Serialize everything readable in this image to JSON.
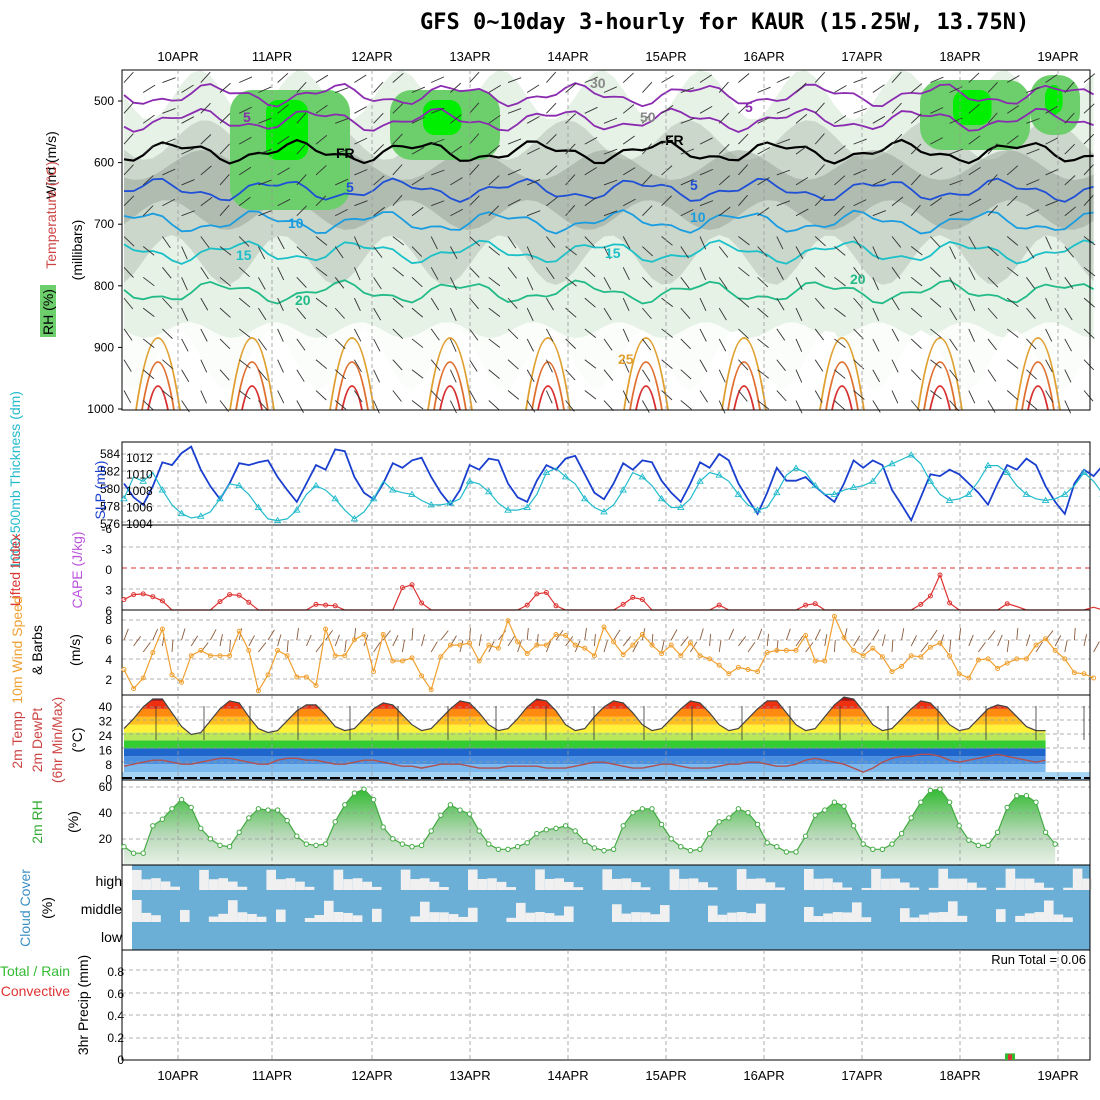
{
  "title": "GFS 0~10day 3-hourly for KAUR (15.25W, 13.75N)",
  "dates": [
    "10APR",
    "11APR",
    "12APR",
    "13APR",
    "14APR",
    "15APR",
    "16APR",
    "17APR",
    "18APR",
    "19APR"
  ],
  "colors": {
    "grid": "#999999",
    "rh_light": "#e6f2e6",
    "rh_mid": "#c8d4c8",
    "rh_dark": "#9aa59a",
    "rh_high": "#6ccf6c",
    "rh_max": "#00ee00",
    "slp": "#1a3fcf",
    "thickness": "#22bbcc",
    "lifted_index": "#dd3333",
    "wind_speed": "#f0a030",
    "barb": "#333333",
    "temp_line": "#444444",
    "dewpoint": "#b05050",
    "rh2m": "#44aa44",
    "cloud_bg": "#6baed6",
    "cloud_fill": "#f0f0f0"
  },
  "panels": {
    "upper": {
      "ylabel": "(millibars)",
      "side_labels": [
        "Wind (m/s)",
        "Temperature (°C)",
        "RH (%)"
      ],
      "yticks": [
        "500",
        "600",
        "700",
        "800",
        "900",
        "1000"
      ],
      "contour_labels": [
        "5",
        "5",
        "FR",
        "FR",
        "5",
        "5",
        "10",
        "10",
        "15",
        "15",
        "20",
        "20",
        "25",
        "30",
        "50"
      ]
    },
    "slp": {
      "side_labels": [
        "1000-500mb Thickness (dm)",
        "SLP (mb)"
      ],
      "left_ticks": [
        "584",
        "582",
        "580",
        "578",
        "576"
      ],
      "right_ticks": [
        "1012",
        "1010",
        "1008",
        "1006",
        "1004"
      ]
    },
    "li": {
      "side_labels": [
        "Lifted Index",
        "CAPE (J/kg)"
      ],
      "yticks": [
        "-6",
        "-3",
        "0",
        "3",
        "6"
      ]
    },
    "wind": {
      "side_labels": [
        "10m Wind Speed",
        "& Barbs"
      ],
      "unit": "(m/s)",
      "yticks": [
        "8",
        "6",
        "4",
        "2"
      ]
    },
    "temp": {
      "side_labels": [
        "2m Temp",
        "2m DewPt",
        "(6hr Min/Max)"
      ],
      "unit": "(°C)",
      "yticks": [
        "40",
        "32",
        "24",
        "16",
        "8",
        "0"
      ]
    },
    "rh": {
      "side_labels": [
        "2m RH"
      ],
      "unit": "(%)",
      "yticks": [
        "60",
        "40",
        "20"
      ]
    },
    "cloud": {
      "side_labels": [
        "Cloud Cover"
      ],
      "unit": "(%)",
      "levels": [
        "high",
        "middle",
        "low"
      ]
    },
    "precip": {
      "side_labels": [
        "Total / Rain",
        "Convective"
      ],
      "ylabel": "3hr Precip (mm)",
      "yticks": [
        "0.8",
        "0.6",
        "0.4",
        "0.2",
        "0"
      ],
      "run_total": "Run Total = 0.06"
    }
  },
  "chart_data": [
    {
      "type": "line",
      "name": "slp",
      "ylabel": "SLP (mb)",
      "ylim": [
        1004,
        1013
      ],
      "values": [
        1008.5,
        1007,
        1006.2,
        1008.2,
        1010.8,
        1010.5,
        1011.8,
        1012.5,
        1010,
        1008.2,
        1006.8,
        1008.5,
        1010.7,
        1010.5,
        1010.8,
        1011,
        1009.2,
        1007.8,
        1006.5,
        1008.5,
        1010.5,
        1010,
        1012.2,
        1012,
        1009.2,
        1007.5,
        1006.8,
        1008.5,
        1010.7,
        1010.2,
        1011,
        1011.3,
        1009.2,
        1007.5,
        1006.2,
        1007.8,
        1010.5,
        1010,
        1011.2,
        1011,
        1008.5,
        1007,
        1006.5,
        1008.8,
        1010.5,
        1010,
        1011.2,
        1011.5,
        1009.5,
        1007.5,
        1006.8,
        1008.5,
        1010.7,
        1010,
        1011,
        1010.8,
        1008.8,
        1007.5,
        1006.5,
        1008.5,
        1010.8,
        1010.2,
        1011.7,
        1011,
        1008.5,
        1006.8,
        1005.2,
        1007.5,
        1010.2,
        1008.8,
        1008.8,
        1009.2,
        1008.2,
        1007.3,
        1006.5,
        1008.5,
        1011,
        1010.2,
        1011,
        1010.5,
        1007.8,
        1006.2,
        1004.5,
        1007,
        1009.5,
        1009.3,
        1010,
        1009.5,
        1008.5,
        1007.5,
        1006.2,
        1008.5,
        1010.5,
        1010,
        1011.2,
        1010.5,
        1008.2,
        1006.5,
        1005.2,
        1008.5,
        1010,
        1009.3,
        1010.5,
        1009.2,
        1009.8
      ]
    },
    {
      "type": "line",
      "name": "thickness",
      "ylabel": "1000-500mb Thickness (dm)",
      "ylim": [
        575.5,
        585
      ],
      "values": [
        578.5,
        581,
        580.5,
        581.5,
        579.5,
        577.8,
        576.8,
        576.3,
        576.5,
        577,
        578.5,
        580.2,
        580,
        579,
        577.5,
        576.2,
        576,
        576.2,
        577.2,
        579,
        580,
        579.5,
        578.5,
        577.2,
        576.2,
        577,
        578.5,
        580.5,
        579.5,
        579.2,
        579,
        578.3,
        577.8,
        577.8,
        578,
        578.5,
        580.5,
        580.2,
        579.3,
        578,
        577.2,
        577.2,
        577.5,
        579,
        581.5,
        582,
        581,
        580.2,
        578.5,
        577.5,
        577,
        577.8,
        579.5,
        581.5,
        581,
        580,
        578.5,
        577.5,
        577.5,
        578.5,
        580.5,
        581.5,
        581.2,
        580.5,
        579,
        577.8,
        577.2,
        577.5,
        579.2,
        581.2,
        582,
        581.5,
        580,
        579,
        579,
        579.5,
        579.8,
        580,
        580.5,
        582,
        582.5,
        583,
        583.5,
        582.5,
        580.5,
        579,
        578.3,
        578.5,
        579,
        580.5,
        582.3,
        582.3,
        581.5,
        580,
        579,
        578.5,
        578.3,
        578.5,
        579,
        580,
        581.5,
        580.5,
        579
      ]
    },
    {
      "type": "line",
      "name": "lifted_index",
      "ylabel": "Lifted Index",
      "ylim": [
        6,
        -6
      ],
      "values": [
        4.5,
        3.8,
        3.7,
        4.1,
        4.7,
        6,
        6,
        6,
        6,
        6,
        4.8,
        3.8,
        3.9,
        4.9,
        6,
        6,
        6,
        6,
        6,
        6,
        5.2,
        5.3,
        5.4,
        6,
        6,
        6,
        6,
        6,
        6,
        2.8,
        2.4,
        5,
        6,
        6,
        6,
        6,
        6,
        6,
        6,
        6,
        6,
        6,
        5.3,
        3.7,
        3.5,
        5.4,
        6,
        6,
        6,
        6,
        6,
        6,
        5.2,
        4.2,
        4.5,
        6,
        6,
        6,
        6,
        6,
        6,
        6,
        5.3,
        6,
        6,
        6,
        6,
        6,
        6,
        6,
        6,
        5.3,
        5.1,
        6,
        6,
        6,
        6,
        6,
        6,
        6,
        6,
        6,
        6,
        5.2,
        4,
        1,
        5,
        6,
        6,
        6,
        6,
        6,
        5.1,
        5.5,
        6,
        6,
        6,
        6,
        6,
        6,
        6,
        5.6,
        6
      ]
    },
    {
      "type": "line",
      "name": "wind_speed_10m",
      "ylabel": "10m Wind Speed (m/s)",
      "ylim": [
        0.8,
        8.8
      ],
      "values": [
        3.2,
        1.4,
        2.4,
        4.8,
        7,
        2.7,
        2,
        4.5,
        5,
        4.5,
        4.5,
        4.5,
        6.8,
        5,
        1.2,
        2.7,
        5,
        4.5,
        2.5,
        2.5,
        1.7,
        7,
        4.5,
        4.5,
        6,
        6.5,
        3,
        6.5,
        4,
        4,
        4.3,
        2.6,
        1.3,
        4.4,
        5.5,
        5.5,
        5.7,
        4,
        5.5,
        5.2,
        7.8,
        5.8,
        4.7,
        5.5,
        5.5,
        6.5,
        6.4,
        5.5,
        5.2,
        4.5,
        7.2,
        5.8,
        4.6,
        5.5,
        6.5,
        5.5,
        4.7,
        5.5,
        4.5,
        5.7,
        4.5,
        4.2,
        3.6,
        2.8,
        3.4,
        3.2,
        3,
        4.8,
        5,
        5,
        5,
        6.4,
        4,
        4,
        8.2,
        6.2,
        5,
        4.5,
        5.2,
        4.4,
        3,
        3.5,
        4.5,
        4.4,
        5.3,
        5.7,
        4.5,
        2.8,
        2.4,
        4.1,
        4.2,
        3.3,
        3.8,
        4.2,
        4.2,
        5.5,
        6.1,
        5,
        4.2,
        2.9,
        2.8,
        2.4
      ]
    },
    {
      "type": "area",
      "name": "temp_2m",
      "ylabel": "2m Temp (°C)",
      "ylim": [
        0,
        43
      ],
      "values": [
        26,
        31,
        37,
        41,
        41,
        34,
        27,
        23,
        24,
        30,
        36,
        40,
        39,
        32,
        26,
        24,
        25,
        30,
        35,
        38,
        38,
        33,
        27,
        25,
        26,
        31,
        36,
        39,
        38,
        33,
        28,
        25,
        26,
        31,
        36,
        40,
        39,
        34,
        28,
        25,
        26,
        31,
        37,
        41,
        40,
        35,
        28,
        25,
        26,
        32,
        37,
        40,
        39,
        34,
        28,
        25,
        26,
        31,
        36,
        40,
        39,
        34,
        28,
        25,
        26,
        31,
        36,
        40,
        40,
        34,
        28,
        25,
        26,
        32,
        38,
        42,
        41,
        35,
        28,
        25,
        26,
        31,
        36,
        40,
        39,
        34,
        28,
        25,
        26,
        31,
        36,
        38,
        37,
        32,
        27,
        25,
        25
      ]
    },
    {
      "type": "line",
      "name": "dewpoint_2m",
      "ylabel": "2m DewPt (°C)",
      "ylim": [
        0,
        43
      ],
      "values": [
        7,
        8,
        9,
        10,
        10,
        9,
        8,
        8,
        9,
        10,
        11,
        11,
        10,
        9,
        8,
        8,
        10,
        11,
        11,
        10,
        10,
        9,
        8,
        8,
        9,
        10,
        10,
        9,
        8,
        7,
        7,
        6,
        7,
        8,
        8,
        8,
        7,
        6,
        6,
        6,
        7,
        7,
        7,
        7,
        6,
        6,
        6,
        7,
        8,
        9,
        9,
        8,
        7,
        6,
        6,
        7,
        8,
        8,
        7,
        6,
        6,
        6,
        7,
        8,
        8,
        9,
        9,
        8,
        7,
        7,
        8,
        10,
        11,
        10,
        9,
        8,
        6,
        4,
        6,
        9,
        11,
        12,
        12,
        13,
        13,
        12,
        10,
        9,
        10,
        11,
        12,
        13,
        12,
        11,
        10,
        9,
        10
      ]
    },
    {
      "type": "area",
      "name": "rh_2m",
      "ylabel": "2m RH (%)",
      "ylim": [
        0,
        65
      ],
      "values": [
        14,
        9,
        9,
        30,
        35,
        43,
        50,
        44,
        28,
        20,
        15,
        14,
        25,
        36,
        43,
        42,
        42,
        34,
        22,
        16,
        15,
        16,
        33,
        46,
        55,
        58,
        50,
        29,
        20,
        16,
        14,
        15,
        26,
        38,
        46,
        42,
        39,
        26,
        16,
        12,
        12,
        14,
        17,
        24,
        27,
        28,
        30,
        26,
        18,
        13,
        11,
        12,
        30,
        40,
        43,
        43,
        31,
        20,
        14,
        11,
        12,
        24,
        33,
        36,
        43,
        40,
        31,
        17,
        14,
        10,
        10,
        22,
        38,
        42,
        48,
        45,
        30,
        16,
        12,
        12,
        16,
        24,
        36,
        48,
        57,
        58,
        48,
        30,
        19,
        15,
        15,
        25,
        44,
        53,
        53,
        48,
        25,
        16
      ]
    },
    {
      "type": "bar",
      "name": "precip_3hr",
      "ylabel": "3hr Precip (mm)",
      "ylim": [
        0,
        1
      ],
      "categories": [
        "18APR"
      ],
      "values": [
        0.06
      ]
    }
  ]
}
